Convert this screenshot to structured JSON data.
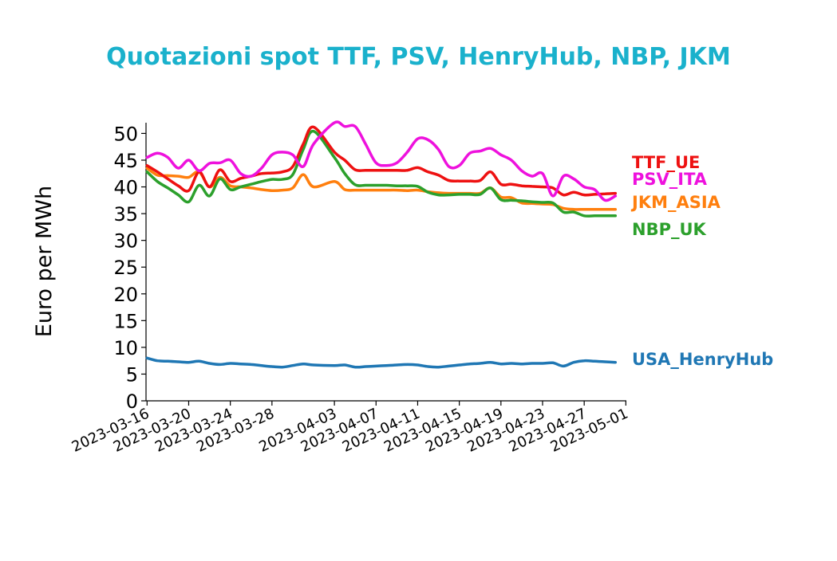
{
  "chart_data": {
    "type": "line",
    "title": "Quotazioni spot TTF, PSV, HenryHub, NBP, JKM",
    "xlabel": "",
    "ylabel": "Euro per MWh",
    "ylim": [
      0,
      52
    ],
    "xlim": [
      "2023-03-16",
      "2023-05-01"
    ],
    "yticks": [
      0,
      5,
      10,
      15,
      20,
      25,
      30,
      35,
      40,
      45,
      50
    ],
    "xticks": [
      "2023-03-16",
      "2023-03-20",
      "2023-03-24",
      "2023-03-28",
      "2023-04-03",
      "2023-04-07",
      "2023-04-11",
      "2023-04-15",
      "2023-04-19",
      "2023-04-23",
      "2023-04-27",
      "2023-05-01"
    ],
    "grid": false,
    "legend": "right",
    "series": [
      {
        "name": "TTF_UE",
        "color": "#ee1111",
        "points": [
          [
            "2023-03-16",
            44.0
          ],
          [
            "2023-03-17",
            42.8
          ],
          [
            "2023-03-18",
            41.5
          ],
          [
            "2023-03-19",
            40.2
          ],
          [
            "2023-03-20",
            39.3
          ],
          [
            "2023-03-21",
            42.8
          ],
          [
            "2023-03-22",
            40.0
          ],
          [
            "2023-03-23",
            43.2
          ],
          [
            "2023-03-24",
            41.0
          ],
          [
            "2023-03-25",
            41.6
          ],
          [
            "2023-03-26",
            42.0
          ],
          [
            "2023-03-27",
            42.5
          ],
          [
            "2023-03-28",
            42.6
          ],
          [
            "2023-03-29",
            42.8
          ],
          [
            "2023-03-30",
            43.8
          ],
          [
            "2023-03-31",
            48.0
          ],
          [
            "2023-04-01",
            51.2
          ],
          [
            "2023-04-03",
            46.5
          ],
          [
            "2023-04-04",
            45.0
          ],
          [
            "2023-04-05",
            43.2
          ],
          [
            "2023-04-06",
            43.1
          ],
          [
            "2023-04-07",
            43.1
          ],
          [
            "2023-04-08",
            43.1
          ],
          [
            "2023-04-09",
            43.1
          ],
          [
            "2023-04-10",
            43.1
          ],
          [
            "2023-04-11",
            43.6
          ],
          [
            "2023-04-12",
            42.8
          ],
          [
            "2023-04-13",
            42.2
          ],
          [
            "2023-04-14",
            41.2
          ],
          [
            "2023-04-15",
            41.1
          ],
          [
            "2023-04-16",
            41.1
          ],
          [
            "2023-04-17",
            41.2
          ],
          [
            "2023-04-18",
            42.8
          ],
          [
            "2023-04-19",
            40.5
          ],
          [
            "2023-04-20",
            40.5
          ],
          [
            "2023-04-21",
            40.2
          ],
          [
            "2023-04-22",
            40.1
          ],
          [
            "2023-04-23",
            40.0
          ],
          [
            "2023-04-24",
            39.8
          ],
          [
            "2023-04-25",
            38.5
          ],
          [
            "2023-04-26",
            39.0
          ],
          [
            "2023-04-27",
            38.5
          ],
          [
            "2023-04-28",
            38.6
          ],
          [
            "2023-04-29",
            38.7
          ],
          [
            "2023-04-30",
            38.8
          ]
        ]
      },
      {
        "name": "PSV_ITA",
        "color": "#ee11dd",
        "points": [
          [
            "2023-03-16",
            45.5
          ],
          [
            "2023-03-17",
            46.3
          ],
          [
            "2023-03-18",
            45.5
          ],
          [
            "2023-03-19",
            43.5
          ],
          [
            "2023-03-20",
            45.0
          ],
          [
            "2023-03-21",
            43.0
          ],
          [
            "2023-03-22",
            44.4
          ],
          [
            "2023-03-23",
            44.5
          ],
          [
            "2023-03-24",
            45.0
          ],
          [
            "2023-03-25",
            42.5
          ],
          [
            "2023-03-26",
            42.0
          ],
          [
            "2023-03-27",
            43.5
          ],
          [
            "2023-03-28",
            46.0
          ],
          [
            "2023-03-29",
            46.5
          ],
          [
            "2023-03-30",
            46.0
          ],
          [
            "2023-03-31",
            43.8
          ],
          [
            "2023-04-01",
            48.0
          ],
          [
            "2023-04-03",
            52.0
          ],
          [
            "2023-04-04",
            51.3
          ],
          [
            "2023-04-05",
            51.3
          ],
          [
            "2023-04-06",
            48.0
          ],
          [
            "2023-04-07",
            44.5
          ],
          [
            "2023-04-08",
            44.0
          ],
          [
            "2023-04-09",
            44.5
          ],
          [
            "2023-04-10",
            46.5
          ],
          [
            "2023-04-11",
            49.0
          ],
          [
            "2023-04-12",
            48.8
          ],
          [
            "2023-04-13",
            47.0
          ],
          [
            "2023-04-14",
            43.8
          ],
          [
            "2023-04-15",
            44.0
          ],
          [
            "2023-04-16",
            46.3
          ],
          [
            "2023-04-17",
            46.7
          ],
          [
            "2023-04-18",
            47.2
          ],
          [
            "2023-04-19",
            46.0
          ],
          [
            "2023-04-20",
            45.0
          ],
          [
            "2023-04-21",
            43.0
          ],
          [
            "2023-04-22",
            42.0
          ],
          [
            "2023-04-23",
            42.5
          ],
          [
            "2023-04-24",
            38.3
          ],
          [
            "2023-04-25",
            42.0
          ],
          [
            "2023-04-26",
            41.5
          ],
          [
            "2023-04-27",
            40.0
          ],
          [
            "2023-04-28",
            39.5
          ],
          [
            "2023-04-29",
            37.5
          ],
          [
            "2023-04-30",
            38.3
          ]
        ]
      },
      {
        "name": "JKM_ASIA",
        "color": "#ff7f0e",
        "points": [
          [
            "2023-03-16",
            43.5
          ],
          [
            "2023-03-17",
            42.2
          ],
          [
            "2023-03-18",
            42.1
          ],
          [
            "2023-03-19",
            42.0
          ],
          [
            "2023-03-20",
            41.8
          ],
          [
            "2023-03-21",
            42.8
          ],
          [
            "2023-03-22",
            40.0
          ],
          [
            "2023-03-23",
            41.8
          ],
          [
            "2023-03-24",
            40.2
          ],
          [
            "2023-03-25",
            40.0
          ],
          [
            "2023-03-26",
            39.8
          ],
          [
            "2023-03-27",
            39.5
          ],
          [
            "2023-03-28",
            39.3
          ],
          [
            "2023-03-29",
            39.4
          ],
          [
            "2023-03-30",
            39.8
          ],
          [
            "2023-03-31",
            42.3
          ],
          [
            "2023-04-01",
            40.0
          ],
          [
            "2023-04-03",
            41.0
          ],
          [
            "2023-04-04",
            39.5
          ],
          [
            "2023-04-05",
            39.4
          ],
          [
            "2023-04-06",
            39.4
          ],
          [
            "2023-04-07",
            39.4
          ],
          [
            "2023-04-08",
            39.4
          ],
          [
            "2023-04-09",
            39.4
          ],
          [
            "2023-04-10",
            39.3
          ],
          [
            "2023-04-11",
            39.4
          ],
          [
            "2023-04-12",
            39.1
          ],
          [
            "2023-04-13",
            38.9
          ],
          [
            "2023-04-14",
            38.8
          ],
          [
            "2023-04-15",
            38.8
          ],
          [
            "2023-04-16",
            38.8
          ],
          [
            "2023-04-17",
            38.8
          ],
          [
            "2023-04-18",
            39.8
          ],
          [
            "2023-04-19",
            38.1
          ],
          [
            "2023-04-20",
            38.0
          ],
          [
            "2023-04-21",
            37.0
          ],
          [
            "2023-04-22",
            36.9
          ],
          [
            "2023-04-23",
            36.8
          ],
          [
            "2023-04-24",
            36.7
          ],
          [
            "2023-04-25",
            36.0
          ],
          [
            "2023-04-26",
            35.8
          ],
          [
            "2023-04-27",
            35.8
          ],
          [
            "2023-04-28",
            35.8
          ],
          [
            "2023-04-29",
            35.8
          ],
          [
            "2023-04-30",
            35.8
          ]
        ]
      },
      {
        "name": "NBP_UK",
        "color": "#2ca02c",
        "points": [
          [
            "2023-03-16",
            42.8
          ],
          [
            "2023-03-17",
            41.0
          ],
          [
            "2023-03-18",
            39.8
          ],
          [
            "2023-03-19",
            38.5
          ],
          [
            "2023-03-20",
            37.2
          ],
          [
            "2023-03-21",
            40.3
          ],
          [
            "2023-03-22",
            38.3
          ],
          [
            "2023-03-23",
            41.5
          ],
          [
            "2023-03-24",
            39.5
          ],
          [
            "2023-03-25",
            40.0
          ],
          [
            "2023-03-26",
            40.5
          ],
          [
            "2023-03-27",
            41.0
          ],
          [
            "2023-03-28",
            41.4
          ],
          [
            "2023-03-29",
            41.4
          ],
          [
            "2023-03-30",
            42.3
          ],
          [
            "2023-03-31",
            47.0
          ],
          [
            "2023-04-01",
            50.4
          ],
          [
            "2023-04-03",
            45.5
          ],
          [
            "2023-04-04",
            42.5
          ],
          [
            "2023-04-05",
            40.4
          ],
          [
            "2023-04-06",
            40.3
          ],
          [
            "2023-04-07",
            40.3
          ],
          [
            "2023-04-08",
            40.3
          ],
          [
            "2023-04-09",
            40.2
          ],
          [
            "2023-04-10",
            40.2
          ],
          [
            "2023-04-11",
            40.1
          ],
          [
            "2023-04-12",
            39.0
          ],
          [
            "2023-04-13",
            38.5
          ],
          [
            "2023-04-14",
            38.5
          ],
          [
            "2023-04-15",
            38.6
          ],
          [
            "2023-04-16",
            38.6
          ],
          [
            "2023-04-17",
            38.6
          ],
          [
            "2023-04-18",
            39.8
          ],
          [
            "2023-04-19",
            37.6
          ],
          [
            "2023-04-20",
            37.5
          ],
          [
            "2023-04-21",
            37.4
          ],
          [
            "2023-04-22",
            37.2
          ],
          [
            "2023-04-23",
            37.1
          ],
          [
            "2023-04-24",
            37.0
          ],
          [
            "2023-04-25",
            35.3
          ],
          [
            "2023-04-26",
            35.3
          ],
          [
            "2023-04-27",
            34.6
          ],
          [
            "2023-04-28",
            34.6
          ],
          [
            "2023-04-29",
            34.6
          ],
          [
            "2023-04-30",
            34.6
          ]
        ]
      },
      {
        "name": "USA_HenryHub",
        "color": "#1f77b4",
        "points": [
          [
            "2023-03-16",
            8.0
          ],
          [
            "2023-03-17",
            7.5
          ],
          [
            "2023-03-18",
            7.4
          ],
          [
            "2023-03-19",
            7.3
          ],
          [
            "2023-03-20",
            7.2
          ],
          [
            "2023-03-21",
            7.4
          ],
          [
            "2023-03-22",
            7.0
          ],
          [
            "2023-03-23",
            6.8
          ],
          [
            "2023-03-24",
            7.0
          ],
          [
            "2023-03-25",
            6.9
          ],
          [
            "2023-03-26",
            6.8
          ],
          [
            "2023-03-27",
            6.6
          ],
          [
            "2023-03-28",
            6.4
          ],
          [
            "2023-03-29",
            6.3
          ],
          [
            "2023-03-30",
            6.6
          ],
          [
            "2023-03-31",
            6.9
          ],
          [
            "2023-04-01",
            6.7
          ],
          [
            "2023-04-03",
            6.6
          ],
          [
            "2023-04-04",
            6.7
          ],
          [
            "2023-04-05",
            6.3
          ],
          [
            "2023-04-06",
            6.4
          ],
          [
            "2023-04-07",
            6.5
          ],
          [
            "2023-04-08",
            6.6
          ],
          [
            "2023-04-09",
            6.7
          ],
          [
            "2023-04-10",
            6.8
          ],
          [
            "2023-04-11",
            6.7
          ],
          [
            "2023-04-12",
            6.4
          ],
          [
            "2023-04-13",
            6.3
          ],
          [
            "2023-04-14",
            6.5
          ],
          [
            "2023-04-15",
            6.7
          ],
          [
            "2023-04-16",
            6.9
          ],
          [
            "2023-04-17",
            7.0
          ],
          [
            "2023-04-18",
            7.2
          ],
          [
            "2023-04-19",
            6.9
          ],
          [
            "2023-04-20",
            7.0
          ],
          [
            "2023-04-21",
            6.9
          ],
          [
            "2023-04-22",
            7.0
          ],
          [
            "2023-04-23",
            7.0
          ],
          [
            "2023-04-24",
            7.1
          ],
          [
            "2023-04-25",
            6.5
          ],
          [
            "2023-04-26",
            7.2
          ],
          [
            "2023-04-27",
            7.5
          ],
          [
            "2023-04-28",
            7.4
          ],
          [
            "2023-04-29",
            7.3
          ],
          [
            "2023-04-30",
            7.2
          ]
        ]
      }
    ]
  }
}
